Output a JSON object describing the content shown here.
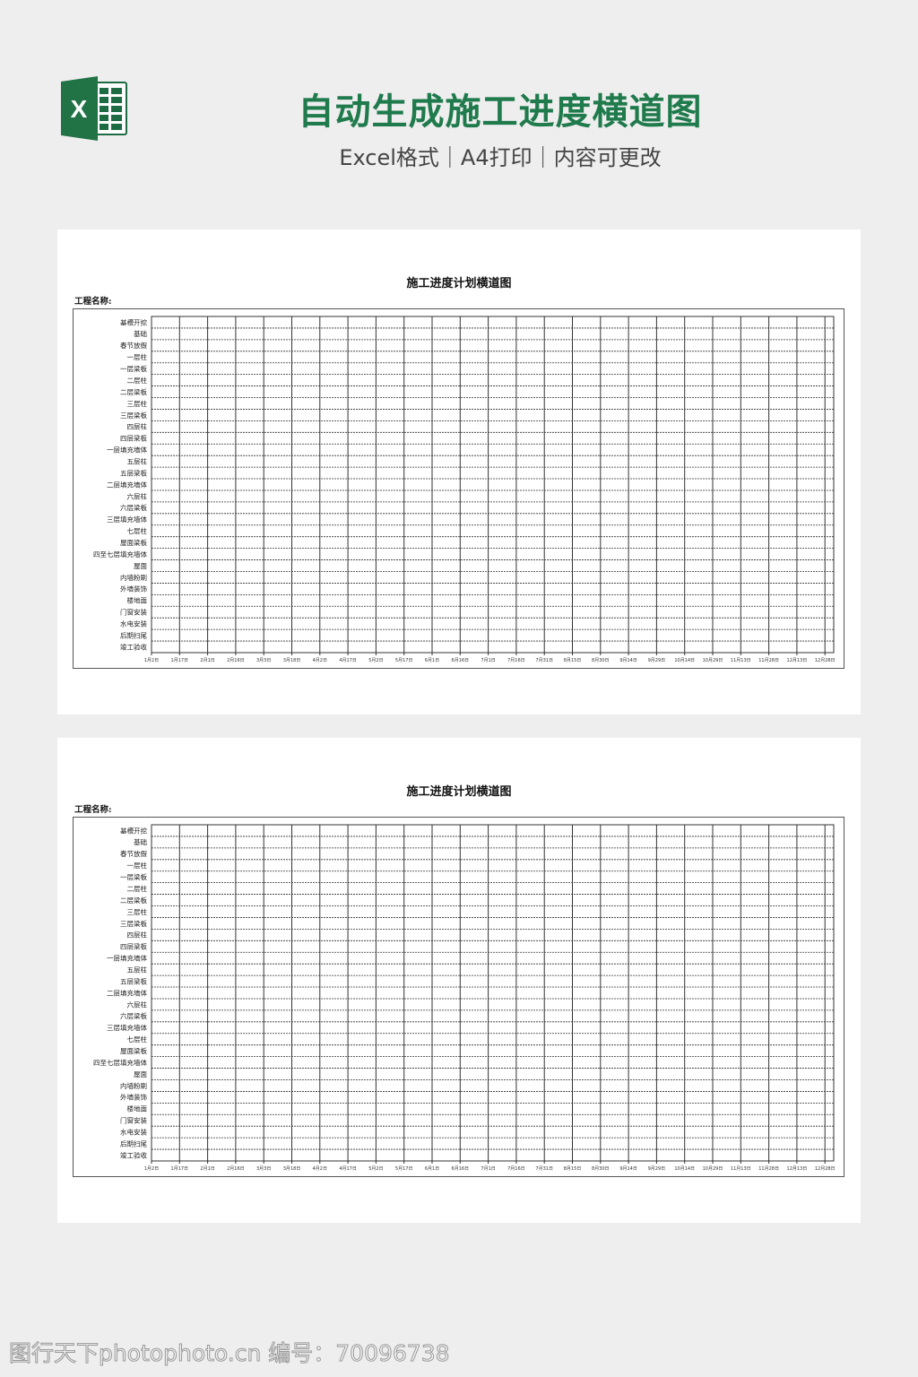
{
  "header": {
    "logo_letter": "X",
    "title": "自动生成施工进度横道图",
    "subtitle": "Excel格式｜A4打印｜内容可更改"
  },
  "sheets": [
    {
      "title": "施工进度计划横道图",
      "project_label": "工程名称:"
    },
    {
      "title": "施工进度计划横道图",
      "project_label": "工程名称:"
    }
  ],
  "tasks": [
    "基槽开挖",
    "基础",
    "春节放假",
    "一层柱",
    "一层梁板",
    "二层柱",
    "二层梁板",
    "三层柱",
    "三层梁板",
    "四层柱",
    "四层梁板",
    "一层填充墙体",
    "五层柱",
    "五层梁板",
    "二层填充墙体",
    "六层柱",
    "六层梁板",
    "三层填充墙体",
    "七层柱",
    "屋面梁板",
    "四至七层填充墙体",
    "屋面",
    "内墙粉刷",
    "外墙装饰",
    "楼地面",
    "门窗安装",
    "水电安装",
    "后期扫尾",
    "竣工验收"
  ],
  "dates": [
    "1月2日",
    "1月17日",
    "2月1日",
    "2月16日",
    "3月3日",
    "3月18日",
    "4月2日",
    "4月17日",
    "5月2日",
    "5月17日",
    "6月1日",
    "6月16日",
    "7月1日",
    "7月16日",
    "7月31日",
    "8月15日",
    "8月30日",
    "9月14日",
    "9月29日",
    "10月14日",
    "10月29日",
    "11月13日",
    "11月28日",
    "12月13日",
    "12月28日"
  ],
  "colors": {
    "brand": "#1f7a4c",
    "grid": "#333333"
  },
  "watermark": "图行天下photophoto.cn 编号：70096738"
}
